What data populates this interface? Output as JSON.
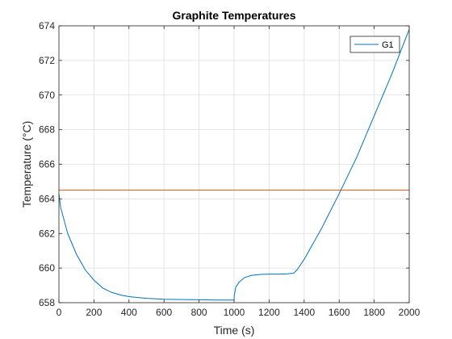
{
  "chart_data": {
    "type": "line",
    "title": "Graphite Temperatures",
    "xlabel": "Time (s)",
    "ylabel": "Temperature (°C)",
    "xlim": [
      0,
      2000
    ],
    "ylim": [
      658,
      674
    ],
    "xticks": [
      0,
      200,
      400,
      600,
      800,
      1000,
      1200,
      1400,
      1600,
      1800,
      2000
    ],
    "yticks": [
      658,
      660,
      662,
      664,
      666,
      668,
      670,
      672,
      674
    ],
    "grid": true,
    "legend": {
      "entries": [
        "G1"
      ],
      "placement": "top-right"
    },
    "series": [
      {
        "name": "G1",
        "color": "#0072BD",
        "x": [
          0,
          10,
          50,
          100,
          150,
          200,
          250,
          300,
          350,
          400,
          500,
          600,
          700,
          800,
          900,
          1000,
          1001,
          1010,
          1030,
          1060,
          1100,
          1150,
          1200,
          1250,
          1300,
          1340,
          1360,
          1400,
          1450,
          1500,
          1550,
          1600,
          1700,
          1800,
          1900,
          2000
        ],
        "y": [
          664.3,
          663.5,
          662.0,
          660.8,
          659.9,
          659.3,
          658.85,
          658.6,
          658.45,
          658.35,
          658.25,
          658.2,
          658.18,
          658.17,
          658.15,
          658.15,
          658.4,
          658.9,
          659.2,
          659.45,
          659.58,
          659.63,
          659.65,
          659.65,
          659.66,
          659.7,
          659.9,
          660.5,
          661.4,
          662.3,
          663.3,
          664.3,
          666.4,
          668.8,
          671.2,
          673.8
        ]
      },
      {
        "name": "",
        "color": "#D95319",
        "x": [
          0,
          2000
        ],
        "y": [
          664.5,
          664.5
        ]
      }
    ]
  }
}
